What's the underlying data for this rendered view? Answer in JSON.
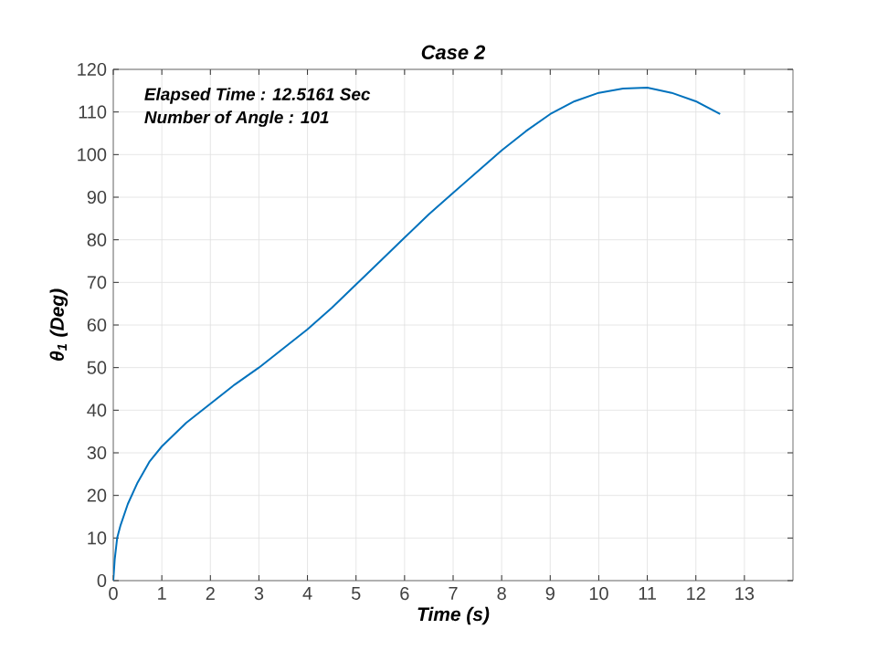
{
  "chart_data": {
    "type": "line",
    "title": "Case 2",
    "xlabel": "Time (s)",
    "ylabel": "θ$_{1}$ (Deg)",
    "annotations": [
      "Elapsed Time : 12.5161 Sec",
      "Number of Angle : 101"
    ],
    "xlim": [
      0,
      14
    ],
    "xticks": [
      0,
      1,
      2,
      3,
      4,
      5,
      6,
      7,
      8,
      9,
      10,
      11,
      12,
      13
    ],
    "ylim": [
      0,
      120
    ],
    "yticks": [
      0,
      10,
      20,
      30,
      40,
      50,
      60,
      70,
      80,
      90,
      100,
      110,
      120
    ],
    "grid": true,
    "marker": "none",
    "line_style": "solid",
    "series": [
      {
        "color": "#0072bd",
        "x": [
          0,
          0.03,
          0.08,
          0.15,
          0.3,
          0.5,
          0.75,
          1,
          1.5,
          2,
          2.5,
          3,
          3.5,
          4,
          4.5,
          5,
          5.5,
          6,
          6.5,
          7,
          7.5,
          8,
          8.5,
          9,
          9.5,
          10,
          10.5,
          11,
          11.5,
          12,
          12.5
        ],
        "values": [
          0,
          5,
          10,
          13,
          18,
          23,
          28,
          31.5,
          37,
          41.5,
          46,
          50,
          54.5,
          59,
          64,
          69.5,
          75,
          80.5,
          86,
          91,
          96,
          101,
          105.5,
          109.5,
          112.5,
          114.5,
          115.5,
          115.7,
          114.5,
          112.5,
          109.5
        ]
      }
    ]
  }
}
